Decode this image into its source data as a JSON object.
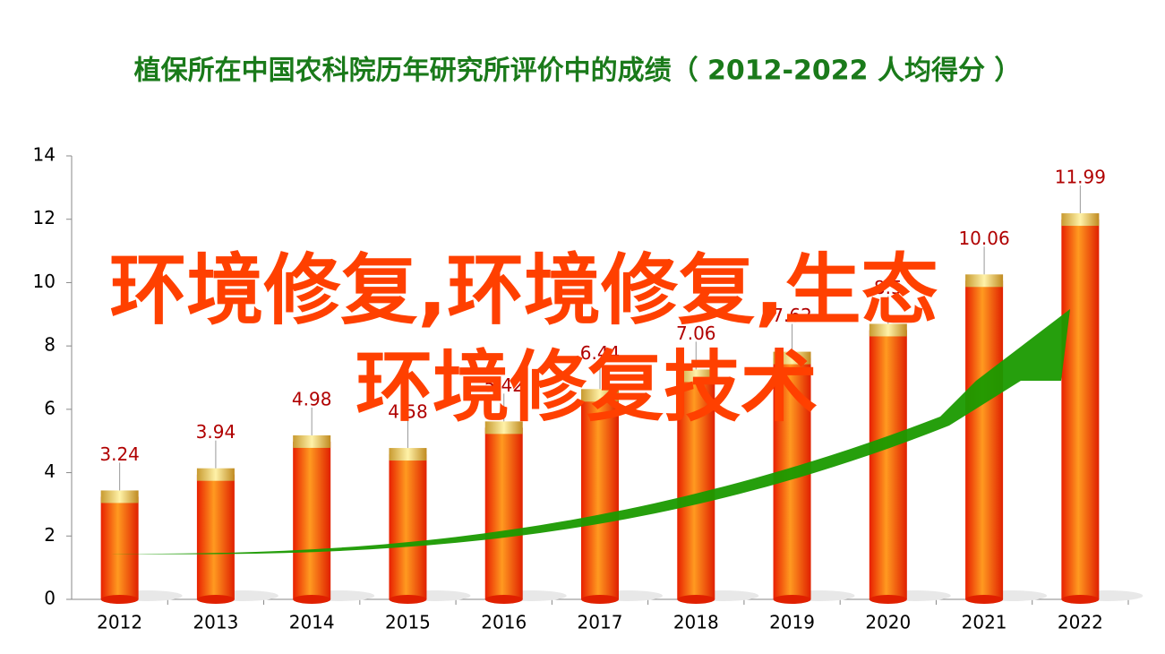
{
  "chart_data": {
    "type": "bar",
    "title": "植保所在中国农科院历年研究所评价中的成绩（ 2012-2022  人均得分 ）",
    "categories": [
      "2012",
      "2013",
      "2014",
      "2015",
      "2016",
      "2017",
      "2018",
      "2019",
      "2020",
      "2021",
      "2022"
    ],
    "values": [
      3.24,
      3.94,
      4.98,
      4.58,
      5.42,
      6.44,
      7.06,
      7.62,
      8.5,
      10.06,
      11.99
    ],
    "color": "#ff3300",
    "ylim": [
      0,
      14
    ],
    "yticks": [
      0,
      2,
      4,
      6,
      8,
      10,
      12,
      14
    ],
    "grid": false
  },
  "watermark": [
    "环境修复,环境修复,生态",
    "环境修复技术"
  ]
}
